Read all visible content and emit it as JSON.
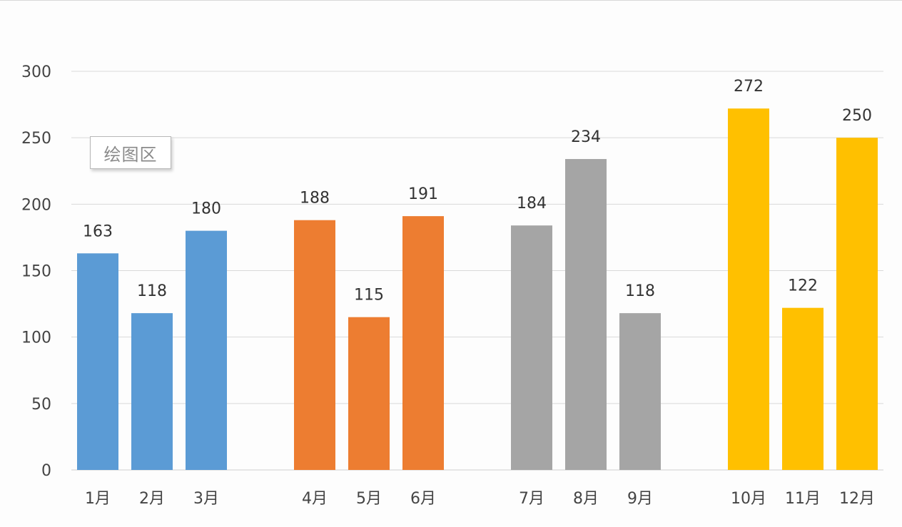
{
  "chart_data": {
    "type": "bar",
    "categories": [
      "1月",
      "2月",
      "3月",
      "4月",
      "5月",
      "6月",
      "7月",
      "8月",
      "9月",
      "10月",
      "11月",
      "12月"
    ],
    "values": [
      163,
      118,
      180,
      188,
      115,
      191,
      184,
      234,
      118,
      272,
      122,
      250
    ],
    "groups": [
      {
        "categories": [
          "1月",
          "2月",
          "3月"
        ],
        "color": "#5b9bd5"
      },
      {
        "categories": [
          "4月",
          "5月",
          "6月"
        ],
        "color": "#ed7d31"
      },
      {
        "categories": [
          "7月",
          "8月",
          "9月"
        ],
        "color": "#a5a5a5"
      },
      {
        "categories": [
          "10月",
          "11月",
          "12月"
        ],
        "color": "#ffc000"
      }
    ],
    "ylim": [
      0,
      300
    ],
    "yticks": [
      0,
      50,
      100,
      150,
      200,
      250,
      300
    ],
    "grid": true,
    "data_labels": true,
    "title": "",
    "xlabel": "",
    "ylabel": ""
  },
  "tooltip": {
    "text": "绘图区"
  }
}
